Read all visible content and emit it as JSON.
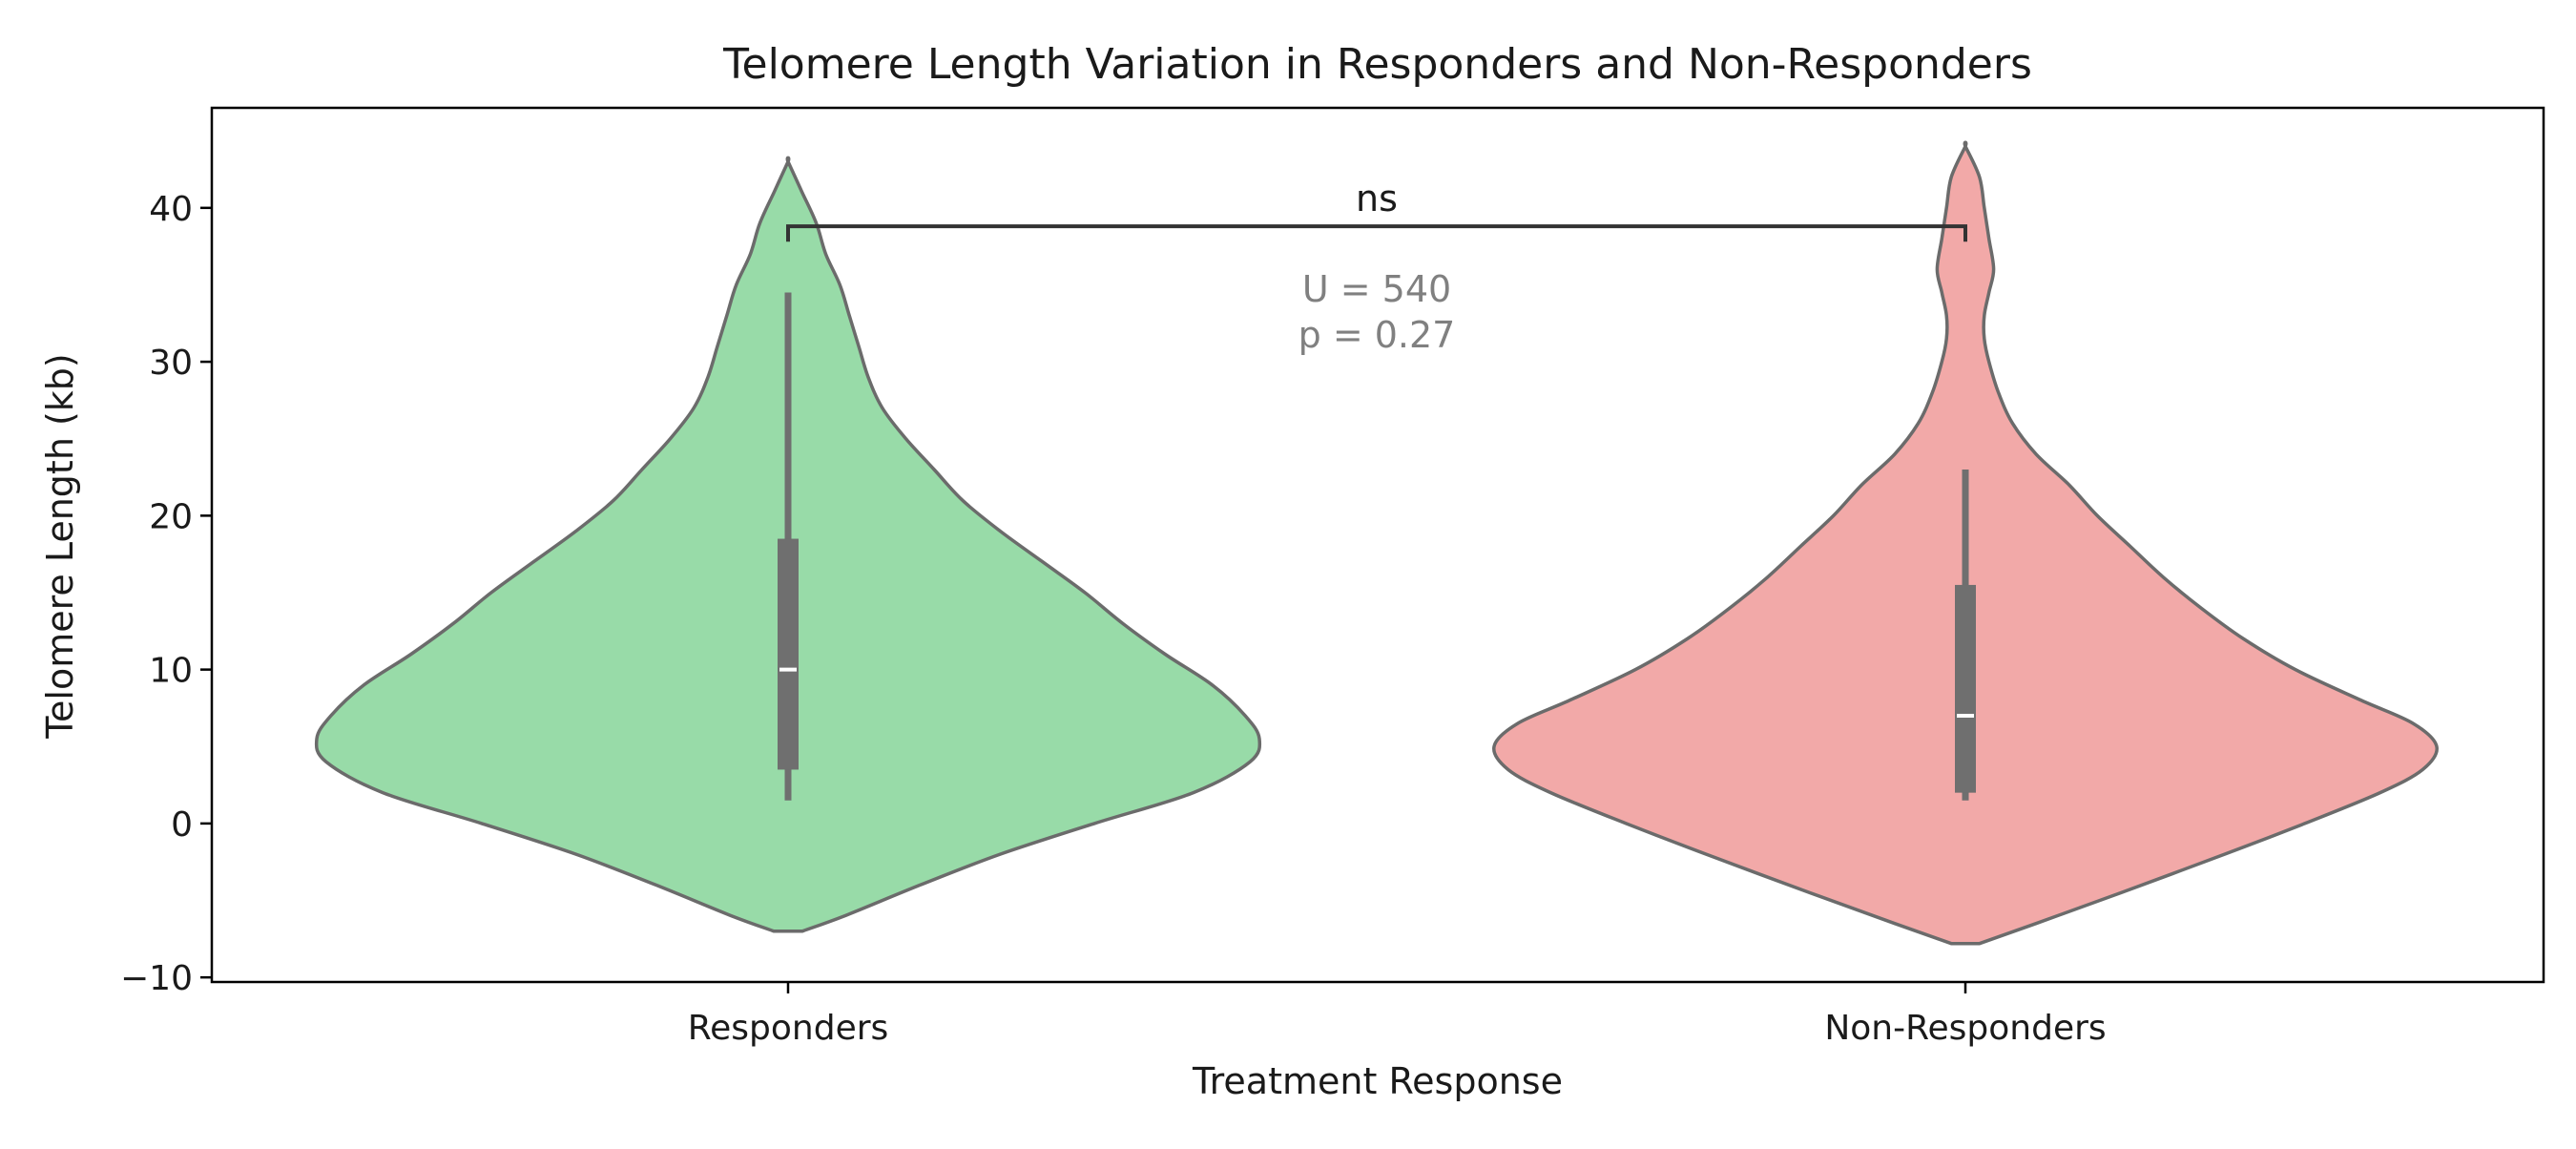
{
  "chart_data": {
    "type": "violin",
    "title": "Telomere Length Variation in Responders and Non-Responders",
    "xlabel": "Treatment Response",
    "ylabel": "Telomere Length (kb)",
    "ylim": [
      -10.3,
      46.5
    ],
    "yticks": [
      -10,
      0,
      10,
      20,
      30,
      40
    ],
    "ytick_labels": [
      "−10",
      "0",
      "10",
      "20",
      "30",
      "40"
    ],
    "grid": false,
    "categories": [
      "Responders",
      "Non-Responders"
    ],
    "groups": [
      {
        "name": "Responders",
        "color": "#98dba8",
        "median": 10,
        "q1": 3.5,
        "q3": 18.5,
        "whisker_low": 1.5,
        "whisker_high": 34.5,
        "violin_min": -7.0,
        "violin_max": 43.0,
        "density_profile": [
          [
            -7.0,
            0.03
          ],
          [
            -6.0,
            0.12
          ],
          [
            -4.0,
            0.28
          ],
          [
            -2.0,
            0.45
          ],
          [
            0.0,
            0.65
          ],
          [
            2.0,
            0.86
          ],
          [
            4.0,
            0.98
          ],
          [
            5.5,
            1.0
          ],
          [
            7.0,
            0.97
          ],
          [
            9.0,
            0.9
          ],
          [
            11.0,
            0.8
          ],
          [
            13.0,
            0.71
          ],
          [
            15.0,
            0.63
          ],
          [
            17.0,
            0.54
          ],
          [
            19.0,
            0.45
          ],
          [
            21.0,
            0.37
          ],
          [
            23.0,
            0.31
          ],
          [
            25.0,
            0.25
          ],
          [
            27.0,
            0.2
          ],
          [
            29.0,
            0.17
          ],
          [
            31.0,
            0.15
          ],
          [
            33.0,
            0.13
          ],
          [
            35.0,
            0.11
          ],
          [
            37.0,
            0.08
          ],
          [
            39.0,
            0.06
          ],
          [
            41.0,
            0.03
          ],
          [
            43.0,
            0.0
          ]
        ]
      },
      {
        "name": "Non-Responders",
        "color": "#f2a9a8",
        "median": 7,
        "q1": 2.0,
        "q3": 15.5,
        "whisker_low": 1.5,
        "whisker_high": 23.0,
        "violin_min": -7.8,
        "violin_max": 44.0,
        "density_profile": [
          [
            -7.8,
            0.03
          ],
          [
            -6.5,
            0.15
          ],
          [
            -4.5,
            0.33
          ],
          [
            -2.0,
            0.55
          ],
          [
            0.0,
            0.72
          ],
          [
            2.0,
            0.88
          ],
          [
            3.5,
            0.97
          ],
          [
            5.0,
            1.0
          ],
          [
            6.5,
            0.95
          ],
          [
            8.0,
            0.84
          ],
          [
            10.0,
            0.7
          ],
          [
            12.0,
            0.59
          ],
          [
            14.0,
            0.5
          ],
          [
            16.0,
            0.42
          ],
          [
            18.0,
            0.35
          ],
          [
            20.0,
            0.28
          ],
          [
            22.0,
            0.22
          ],
          [
            24.0,
            0.15
          ],
          [
            26.0,
            0.1
          ],
          [
            28.0,
            0.07
          ],
          [
            30.0,
            0.05
          ],
          [
            31.5,
            0.04
          ],
          [
            33.0,
            0.04
          ],
          [
            34.5,
            0.05
          ],
          [
            36.0,
            0.06
          ],
          [
            38.0,
            0.05
          ],
          [
            40.0,
            0.04
          ],
          [
            42.0,
            0.03
          ],
          [
            44.0,
            0.0
          ]
        ]
      }
    ],
    "annotation": {
      "bracket_y": 38.8,
      "tick_drop": 1.0,
      "label": "ns",
      "stat_U": "U = 540",
      "stat_p": "p = 0.27"
    }
  }
}
